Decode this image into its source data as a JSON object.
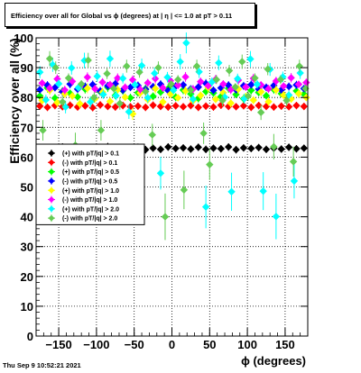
{
  "title": "Efficiency over all for Global vs ϕ (degrees) at |  η | <= 1.0 at pT > 0.11",
  "footer": "Thu Sep  9 10:52:21 2021",
  "chart_data": {
    "type": "scatter",
    "title": "Efficiency over all for Global vs ϕ (degrees) at |  η | <= 1.0 at pT > 0.11",
    "xlabel": "ϕ (degrees)",
    "ylabel": "Efficiency over all (%)",
    "xlim": [
      -180,
      180
    ],
    "ylim": [
      0,
      100
    ],
    "xticks": [
      -150,
      -100,
      -50,
      0,
      50,
      100,
      150
    ],
    "xtick_labels": [
      "−150",
      "−100",
      "−50",
      "0",
      "50",
      "100",
      "150"
    ],
    "yticks": [
      0,
      10,
      20,
      30,
      40,
      50,
      60,
      70,
      80,
      90,
      100
    ],
    "grid": true,
    "legend_position": "left-middle",
    "series": [
      {
        "name": "(+) with pT/|q| > 0.1",
        "color": "#000000",
        "level": 63,
        "points": [
          [
            -175,
            62.5
          ],
          [
            -165,
            63.1
          ],
          [
            -155,
            62.8
          ],
          [
            -145,
            63.4
          ],
          [
            -135,
            62.7
          ],
          [
            -125,
            63.0
          ],
          [
            -115,
            62.6
          ],
          [
            -105,
            63.2
          ],
          [
            -95,
            62.9
          ],
          [
            -85,
            63.5
          ],
          [
            -75,
            62.4
          ],
          [
            -65,
            63.1
          ],
          [
            -55,
            62.8
          ],
          [
            -45,
            63.3
          ],
          [
            -35,
            62.5
          ],
          [
            -25,
            63.0
          ],
          [
            -15,
            62.6
          ],
          [
            -5,
            63.4
          ],
          [
            5,
            62.9
          ],
          [
            15,
            63.1
          ],
          [
            25,
            62.7
          ],
          [
            35,
            63.3
          ],
          [
            45,
            62.6
          ],
          [
            55,
            63.0
          ],
          [
            65,
            62.8
          ],
          [
            75,
            63.4
          ],
          [
            85,
            62.5
          ],
          [
            95,
            63.1
          ],
          [
            105,
            62.9
          ],
          [
            115,
            63.2
          ],
          [
            125,
            62.6
          ],
          [
            135,
            63.0
          ],
          [
            145,
            62.7
          ],
          [
            155,
            63.3
          ],
          [
            165,
            62.8
          ],
          [
            175,
            63.0
          ]
        ]
      },
      {
        "name": "(-) with pT/|q| > 0.1",
        "color": "#ff0000",
        "level": 77,
        "points": [
          [
            -175,
            77.1
          ],
          [
            -165,
            76.7
          ],
          [
            -155,
            77.3
          ],
          [
            -145,
            76.9
          ],
          [
            -135,
            77.4
          ],
          [
            -125,
            76.8
          ],
          [
            -115,
            77.2
          ],
          [
            -105,
            76.6
          ],
          [
            -95,
            77.5
          ],
          [
            -85,
            77.0
          ],
          [
            -75,
            76.8
          ],
          [
            -65,
            77.3
          ],
          [
            -55,
            76.9
          ],
          [
            -45,
            77.1
          ],
          [
            -35,
            76.7
          ],
          [
            -25,
            77.4
          ],
          [
            -15,
            77.0
          ],
          [
            -5,
            76.8
          ],
          [
            5,
            77.2
          ],
          [
            15,
            76.9
          ],
          [
            25,
            77.3
          ],
          [
            35,
            76.7
          ],
          [
            45,
            77.1
          ],
          [
            55,
            76.8
          ],
          [
            65,
            77.4
          ],
          [
            75,
            77.0
          ],
          [
            85,
            76.9
          ],
          [
            95,
            77.2
          ],
          [
            105,
            76.7
          ],
          [
            115,
            77.3
          ],
          [
            125,
            77.0
          ],
          [
            135,
            76.8
          ],
          [
            145,
            77.1
          ],
          [
            155,
            76.9
          ],
          [
            165,
            77.3
          ],
          [
            175,
            77.0
          ]
        ]
      },
      {
        "name": "(+) with pT/|q| > 0.5",
        "color": "#00ff00",
        "level": 81,
        "points": [
          [
            -175,
            80.5
          ],
          [
            -165,
            83.2
          ],
          [
            -155,
            79.8
          ],
          [
            -145,
            82.1
          ],
          [
            -135,
            81.4
          ],
          [
            -125,
            80.2
          ],
          [
            -115,
            82.8
          ],
          [
            -105,
            79.5
          ],
          [
            -95,
            81.9
          ],
          [
            -85,
            83.4
          ],
          [
            -75,
            80.7
          ],
          [
            -65,
            82.3
          ],
          [
            -55,
            79.9
          ],
          [
            -45,
            81.6
          ],
          [
            -35,
            82.9
          ],
          [
            -25,
            80.4
          ],
          [
            -15,
            81.8
          ],
          [
            -5,
            83.0
          ],
          [
            5,
            80.1
          ],
          [
            15,
            82.5
          ],
          [
            25,
            81.2
          ],
          [
            35,
            79.7
          ],
          [
            45,
            82.0
          ],
          [
            55,
            81.5
          ],
          [
            65,
            80.3
          ],
          [
            75,
            83.1
          ],
          [
            85,
            81.0
          ],
          [
            95,
            79.6
          ],
          [
            105,
            82.4
          ],
          [
            115,
            81.7
          ],
          [
            125,
            80.6
          ],
          [
            135,
            82.7
          ],
          [
            145,
            81.3
          ],
          [
            155,
            80.0
          ],
          [
            165,
            82.2
          ],
          [
            175,
            81.1
          ]
        ]
      },
      {
        "name": "(-) with pT/|q| > 0.5",
        "color": "#0000ff",
        "level": 83,
        "points": [
          [
            -175,
            82.6
          ],
          [
            -165,
            84.1
          ],
          [
            -155,
            83.3
          ],
          [
            -145,
            81.9
          ],
          [
            -135,
            84.5
          ],
          [
            -125,
            82.8
          ],
          [
            -115,
            83.7
          ],
          [
            -105,
            84.3
          ],
          [
            -95,
            82.2
          ],
          [
            -85,
            83.9
          ],
          [
            -75,
            84.6
          ],
          [
            -65,
            82.5
          ],
          [
            -55,
            83.4
          ],
          [
            -45,
            84.0
          ],
          [
            -35,
            82.7
          ],
          [
            -25,
            83.6
          ],
          [
            -15,
            84.4
          ],
          [
            -5,
            82.3
          ],
          [
            5,
            83.8
          ],
          [
            15,
            84.2
          ],
          [
            25,
            82.9
          ],
          [
            35,
            83.5
          ],
          [
            45,
            84.7
          ],
          [
            55,
            82.4
          ],
          [
            65,
            83.2
          ],
          [
            75,
            84.1
          ],
          [
            85,
            82.6
          ],
          [
            95,
            83.9
          ],
          [
            105,
            84.3
          ],
          [
            115,
            82.8
          ],
          [
            125,
            83.4
          ],
          [
            135,
            84.0
          ],
          [
            145,
            82.5
          ],
          [
            155,
            83.7
          ],
          [
            165,
            84.2
          ],
          [
            175,
            83.0
          ]
        ]
      },
      {
        "name": "(+) with pT/|q| > 1.0",
        "color": "#ffff00",
        "level": 80,
        "points": [
          [
            -172,
            79.0
          ],
          [
            -162,
            82.4
          ],
          [
            -152,
            78.3
          ],
          [
            -142,
            81.2
          ],
          [
            -132,
            80.5
          ],
          [
            -122,
            77.9
          ],
          [
            -112,
            83.1
          ],
          [
            -102,
            79.6
          ],
          [
            -92,
            81.8
          ],
          [
            -82,
            78.7
          ],
          [
            -72,
            82.6
          ],
          [
            -62,
            80.1
          ],
          [
            -52,
            74.5
          ],
          [
            -42,
            81.5
          ],
          [
            -32,
            79.3
          ],
          [
            -22,
            83.0
          ],
          [
            -12,
            78.5
          ],
          [
            -2,
            81.1
          ],
          [
            8,
            79.9
          ],
          [
            18,
            82.2
          ],
          [
            28,
            78.9
          ],
          [
            38,
            80.7
          ],
          [
            48,
            83.3
          ],
          [
            58,
            79.4
          ],
          [
            68,
            81.6
          ],
          [
            78,
            78.1
          ],
          [
            88,
            82.8
          ],
          [
            98,
            80.3
          ],
          [
            108,
            79.1
          ],
          [
            118,
            81.9
          ],
          [
            128,
            78.6
          ],
          [
            138,
            82.5
          ],
          [
            148,
            80.8
          ],
          [
            158,
            79.5
          ],
          [
            168,
            81.3
          ],
          [
            178,
            80.0
          ]
        ]
      },
      {
        "name": "(-) with pT/|q| > 1.0",
        "color": "#ff00ff",
        "level": 84,
        "points": [
          [
            -172,
            84.8
          ],
          [
            -162,
            83.1
          ],
          [
            -152,
            86.2
          ],
          [
            -142,
            82.5
          ],
          [
            -132,
            85.4
          ],
          [
            -122,
            83.7
          ],
          [
            -112,
            86.8
          ],
          [
            -102,
            82.9
          ],
          [
            -92,
            85.1
          ],
          [
            -82,
            84.3
          ],
          [
            -72,
            86.5
          ],
          [
            -62,
            83.4
          ],
          [
            -52,
            85.9
          ],
          [
            -42,
            82.7
          ],
          [
            -32,
            84.9
          ],
          [
            -22,
            86.3
          ],
          [
            -12,
            83.2
          ],
          [
            -2,
            85.6
          ],
          [
            8,
            84.1
          ],
          [
            18,
            86.9
          ],
          [
            28,
            82.8
          ],
          [
            38,
            85.3
          ],
          [
            48,
            83.9
          ],
          [
            58,
            86.1
          ],
          [
            68,
            84.5
          ],
          [
            78,
            82.6
          ],
          [
            88,
            85.8
          ],
          [
            98,
            83.5
          ],
          [
            108,
            86.4
          ],
          [
            118,
            84.2
          ],
          [
            128,
            82.9
          ],
          [
            138,
            85.5
          ],
          [
            148,
            83.8
          ],
          [
            158,
            86.6
          ],
          [
            168,
            84.4
          ],
          [
            178,
            85.0
          ]
        ]
      },
      {
        "name": "(+) with pT/|q| > 2.0",
        "color": "#00ffff",
        "level": 83,
        "points": [
          [
            -175,
            88.5
          ],
          [
            -167,
            79.2
          ],
          [
            -158,
            91.0
          ],
          [
            -150,
            84.6
          ],
          [
            -141,
            76.8
          ],
          [
            -133,
            89.9
          ],
          [
            -124,
            83.3
          ],
          [
            -116,
            92.4
          ],
          [
            -108,
            78.5
          ],
          [
            -99,
            87.1
          ],
          [
            -91,
            81.0
          ],
          [
            -82,
            93.0
          ],
          [
            -74,
            80.6
          ],
          [
            -65,
            86.4
          ],
          [
            -57,
            75.2
          ],
          [
            -49,
            84.3
          ],
          [
            -40,
            90.7
          ],
          [
            -32,
            79.9
          ],
          [
            -23,
            88.1
          ],
          [
            -15,
            54.6
          ],
          [
            -6,
            86.8
          ],
          [
            2,
            82.4
          ],
          [
            11,
            92.0
          ],
          [
            19,
            98.3
          ],
          [
            28,
            79.4
          ],
          [
            36,
            88.6
          ],
          [
            45,
            43.3
          ],
          [
            53,
            85.2
          ],
          [
            62,
            91.6
          ],
          [
            70,
            80.1
          ],
          [
            79,
            48.4
          ],
          [
            87,
            86.3
          ],
          [
            96,
            79.6
          ],
          [
            104,
            92.9
          ],
          [
            113,
            84.4
          ],
          [
            121,
            48.6
          ],
          [
            130,
            89.4
          ],
          [
            138,
            40.1
          ],
          [
            147,
            86.9
          ],
          [
            155,
            80.8
          ],
          [
            162,
            52.0
          ],
          [
            170,
            88.2
          ]
        ]
      },
      {
        "name": "(-) with pT/|q| > 2.0",
        "color": "#66cc55",
        "level": 84,
        "points": [
          [
            -171,
            69.0
          ],
          [
            -162,
            93.0
          ],
          [
            -154,
            90.0
          ],
          [
            -145,
            78.5
          ],
          [
            -137,
            86.5
          ],
          [
            -128,
            64.0
          ],
          [
            -120,
            84.5
          ],
          [
            -111,
            92.5
          ],
          [
            -103,
            80.0
          ],
          [
            -94,
            69.0
          ],
          [
            -86,
            88.0
          ],
          [
            -77,
            83.0
          ],
          [
            -69,
            78.0
          ],
          [
            -60,
            90.5
          ],
          [
            -52,
            56.0
          ],
          [
            -43,
            88.5
          ],
          [
            -35,
            82.0
          ],
          [
            -26,
            67.5
          ],
          [
            -18,
            90.0
          ],
          [
            -9,
            40.0
          ],
          [
            -1,
            84.5
          ],
          [
            8,
            86.0
          ],
          [
            16,
            49.0
          ],
          [
            25,
            82.5
          ],
          [
            33,
            90.5
          ],
          [
            42,
            68.0
          ],
          [
            50,
            57.5
          ],
          [
            59,
            86.0
          ],
          [
            67,
            79.0
          ],
          [
            76,
            89.0
          ],
          [
            84,
            83.5
          ],
          [
            93,
            92.0
          ],
          [
            101,
            80.5
          ],
          [
            110,
            86.5
          ],
          [
            118,
            75.0
          ],
          [
            127,
            89.5
          ],
          [
            135,
            63.5
          ],
          [
            144,
            86.0
          ],
          [
            152,
            79.0
          ],
          [
            161,
            58.5
          ],
          [
            169,
            90.5
          ],
          [
            177,
            83.0
          ]
        ]
      }
    ]
  }
}
